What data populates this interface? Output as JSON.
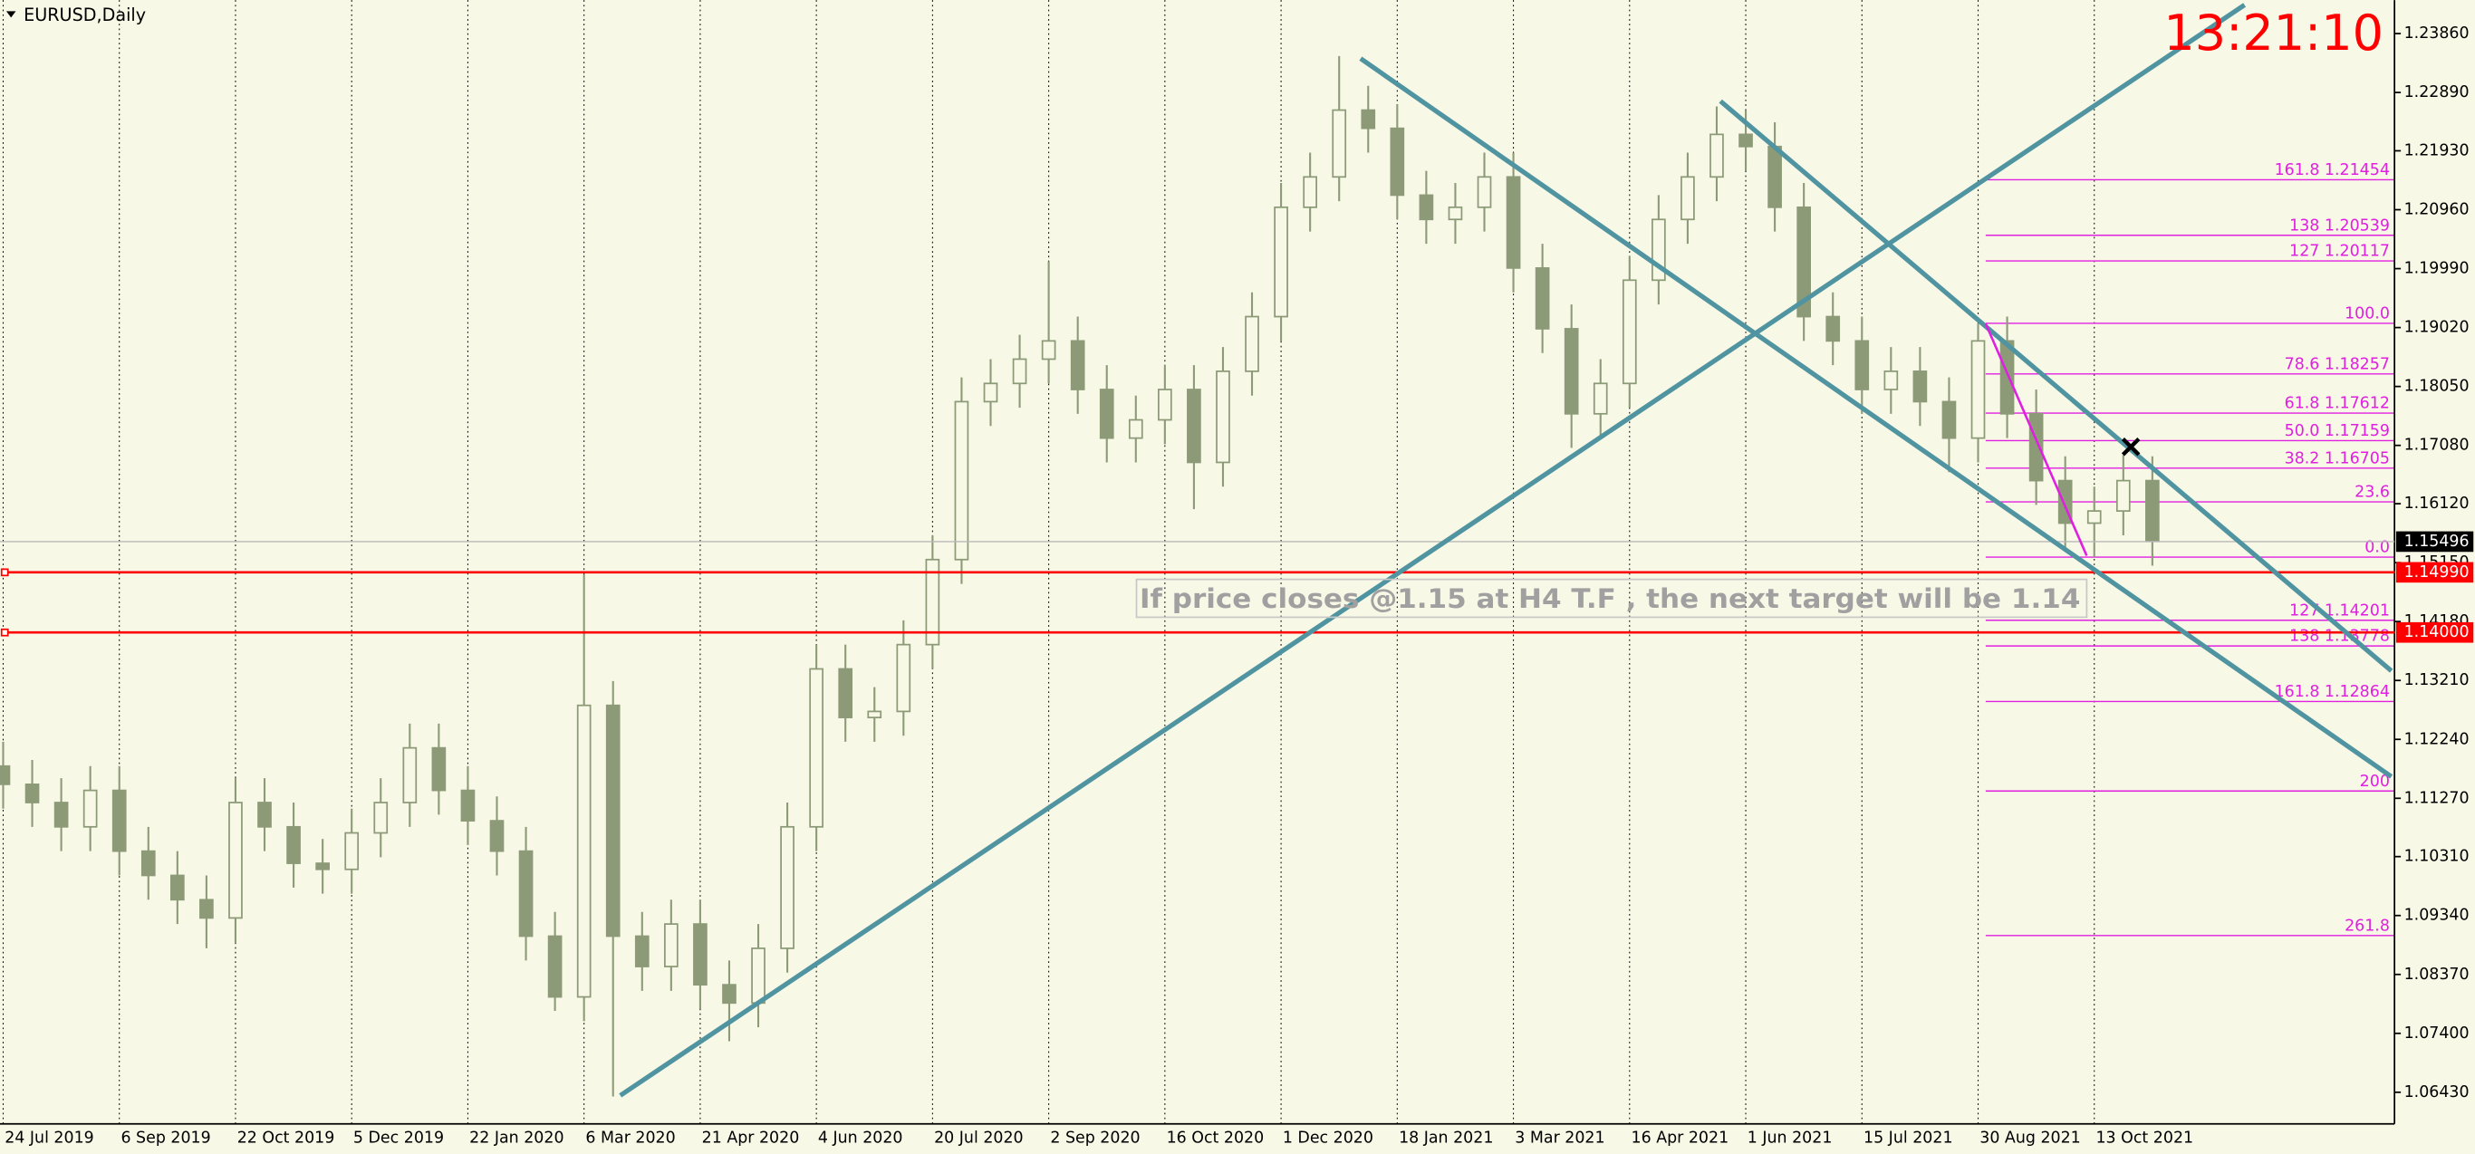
{
  "header": {
    "symbol": "EURUSD,Daily",
    "clock": "13:21:10"
  },
  "chart_data": {
    "type": "candlestick",
    "categories": [
      "24 Jul 2019",
      null,
      null,
      null,
      "6 Sep 2019",
      null,
      null,
      null,
      "22 Oct 2019",
      null,
      null,
      null,
      "5 Dec 2019",
      null,
      null,
      null,
      "22 Jan 2020",
      null,
      null,
      null,
      "6 Mar 2020",
      null,
      null,
      null,
      "21 Apr 2020",
      null,
      null,
      null,
      "4 Jun 2020",
      null,
      null,
      null,
      "20 Jul 2020",
      null,
      null,
      null,
      "2 Sep 2020",
      null,
      null,
      null,
      "16 Oct 2020",
      null,
      null,
      null,
      "1 Dec 2020",
      null,
      null,
      null,
      "18 Jan 2021",
      null,
      null,
      null,
      "3 Mar 2021",
      null,
      null,
      null,
      "16 Apr 2021",
      null,
      null,
      null,
      "1 Jun 2021",
      null,
      null,
      null,
      "15 Jul 2021",
      null,
      null,
      null,
      "30 Aug 2021",
      null,
      null,
      null,
      "13 Oct 2021",
      null,
      null
    ],
    "open": [
      1.118,
      1.115,
      1.112,
      1.108,
      1.114,
      1.104,
      1.1,
      1.096,
      1.093,
      1.112,
      1.108,
      1.102,
      1.101,
      1.107,
      1.112,
      1.121,
      1.114,
      1.109,
      1.104,
      1.09,
      1.08,
      1.128,
      1.09,
      1.085,
      1.092,
      1.082,
      1.079,
      1.088,
      1.108,
      1.134,
      1.126,
      1.127,
      1.138,
      1.152,
      1.178,
      1.181,
      1.185,
      1.188,
      1.18,
      1.172,
      1.175,
      1.18,
      1.168,
      1.183,
      1.192,
      1.21,
      1.215,
      1.226,
      1.223,
      1.212,
      1.208,
      1.21,
      1.215,
      1.2,
      1.19,
      1.176,
      1.181,
      1.198,
      1.208,
      1.215,
      1.222,
      1.22,
      1.21,
      1.192,
      1.188,
      1.18,
      1.183,
      1.178,
      1.172,
      1.188,
      1.176,
      1.165,
      1.158,
      1.16,
      1.165
    ],
    "high": [
      1.122,
      1.119,
      1.116,
      1.118,
      1.118,
      1.108,
      1.104,
      1.1,
      1.116,
      1.116,
      1.112,
      1.106,
      1.111,
      1.116,
      1.125,
      1.125,
      1.118,
      1.113,
      1.108,
      1.094,
      1.1495,
      1.132,
      1.094,
      1.096,
      1.096,
      1.086,
      1.092,
      1.112,
      1.138,
      1.138,
      1.131,
      1.142,
      1.156,
      1.182,
      1.185,
      1.189,
      1.2011,
      1.192,
      1.184,
      1.179,
      1.184,
      1.184,
      1.187,
      1.196,
      1.214,
      1.219,
      1.2349,
      1.23,
      1.227,
      1.216,
      1.214,
      1.219,
      1.219,
      1.204,
      1.194,
      1.185,
      1.202,
      1.212,
      1.219,
      1.2266,
      1.226,
      1.224,
      1.214,
      1.196,
      1.192,
      1.187,
      1.187,
      1.182,
      1.1909,
      1.192,
      1.18,
      1.169,
      1.164,
      1.1692,
      1.169
    ],
    "low": [
      1.111,
      1.108,
      1.104,
      1.104,
      1.1,
      1.096,
      1.092,
      1.088,
      1.089,
      1.104,
      1.098,
      1.097,
      1.097,
      1.103,
      1.108,
      1.11,
      1.105,
      1.1,
      1.086,
      1.0777,
      1.076,
      1.0636,
      1.081,
      1.081,
      1.078,
      1.0727,
      1.075,
      1.084,
      1.104,
      1.122,
      1.122,
      1.123,
      1.134,
      1.148,
      1.174,
      1.177,
      1.181,
      1.176,
      1.168,
      1.168,
      1.171,
      1.1603,
      1.164,
      1.179,
      1.188,
      1.206,
      1.211,
      1.219,
      1.208,
      1.204,
      1.204,
      1.206,
      1.196,
      1.186,
      1.1704,
      1.172,
      1.177,
      1.194,
      1.204,
      1.211,
      1.216,
      1.206,
      1.188,
      1.184,
      1.176,
      1.176,
      1.174,
      1.1664,
      1.168,
      1.172,
      1.161,
      1.154,
      1.1524,
      1.156,
      1.151
    ],
    "close": [
      1.115,
      1.112,
      1.108,
      1.114,
      1.104,
      1.1,
      1.096,
      1.093,
      1.112,
      1.108,
      1.102,
      1.101,
      1.107,
      1.112,
      1.121,
      1.114,
      1.109,
      1.104,
      1.09,
      1.08,
      1.128,
      1.09,
      1.085,
      1.092,
      1.082,
      1.079,
      1.088,
      1.108,
      1.134,
      1.126,
      1.127,
      1.138,
      1.152,
      1.178,
      1.181,
      1.185,
      1.188,
      1.18,
      1.172,
      1.175,
      1.18,
      1.168,
      1.183,
      1.192,
      1.21,
      1.215,
      1.226,
      1.223,
      1.212,
      1.208,
      1.21,
      1.215,
      1.2,
      1.19,
      1.176,
      1.181,
      1.198,
      1.208,
      1.215,
      1.222,
      1.22,
      1.21,
      1.192,
      1.188,
      1.18,
      1.183,
      1.178,
      1.172,
      1.188,
      1.176,
      1.165,
      1.158,
      1.16,
      1.165,
      1.155
    ],
    "color": "#8c9a78",
    "ylim": [
      1.0591,
      1.2441
    ],
    "yticks": [
      {
        "value": 1.2386,
        "label": "1.23860"
      },
      {
        "value": 1.2289,
        "label": "1.22890"
      },
      {
        "value": 1.2193,
        "label": "1.21930"
      },
      {
        "value": 1.2096,
        "label": "1.20960"
      },
      {
        "value": 1.1999,
        "label": "1.19990"
      },
      {
        "value": 1.1902,
        "label": "1.19020"
      },
      {
        "value": 1.1805,
        "label": "1.18050"
      },
      {
        "value": 1.1708,
        "label": "1.17080"
      },
      {
        "value": 1.1612,
        "label": "1.16120"
      },
      {
        "value": 1.1515,
        "label": "1.15150"
      },
      {
        "value": 1.1418,
        "label": "1.14180"
      },
      {
        "value": 1.1321,
        "label": "1.13210"
      },
      {
        "value": 1.1224,
        "label": "1.12240"
      },
      {
        "value": 1.1127,
        "label": "1.11270"
      },
      {
        "value": 1.1031,
        "label": "1.10310"
      },
      {
        "value": 1.0934,
        "label": "1.09340"
      },
      {
        "value": 1.0837,
        "label": "1.08370"
      },
      {
        "value": 1.074,
        "label": "1.07400"
      },
      {
        "value": 1.0643,
        "label": "1.06430"
      }
    ],
    "grid": true,
    "current_price": 1.15496,
    "levels": [
      {
        "value": 1.1499,
        "label": "1.14990",
        "color": "#ff0000"
      },
      {
        "value": 1.14,
        "label": "1.14000",
        "color": "#ff0000"
      }
    ],
    "fibonacci": {
      "color": "#e020e0",
      "levels": [
        {
          "label": "161.8  1.21454",
          "price": 1.21454
        },
        {
          "label": "138  1.20539",
          "price": 1.20539
        },
        {
          "label": "127  1.20117",
          "price": 1.20117
        },
        {
          "label": "100.0",
          "price": 1.1909
        },
        {
          "label": "78.6  1.18257",
          "price": 1.18257
        },
        {
          "label": "61.8  1.17612",
          "price": 1.17612
        },
        {
          "label": "50.0  1.17159",
          "price": 1.17159
        },
        {
          "label": "38.2  1.16705",
          "price": 1.16705
        },
        {
          "label": "23.6",
          "price": 1.1615
        },
        {
          "label": "0.0",
          "price": 1.1524
        },
        {
          "label": "127  1.14201",
          "price": 1.14201
        },
        {
          "label": "138  1.13778",
          "price": 1.13778
        },
        {
          "label": "161.8  1.12864",
          "price": 1.12864
        },
        {
          "label": "200",
          "price": 1.1139
        },
        {
          "label": "261.8",
          "price": 1.0901
        }
      ]
    },
    "annotation": "If price closes @1.15  at H4 T.F , the next target will be 1.14"
  }
}
